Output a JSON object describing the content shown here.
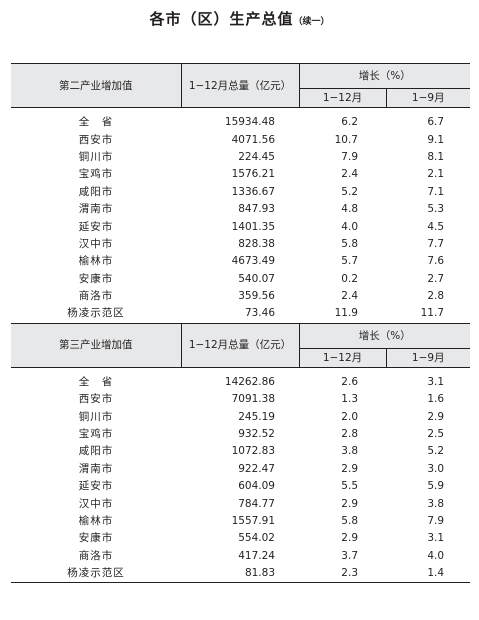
{
  "title": "各市（区）生产总值",
  "title_suffix": "（续一）",
  "columns": {
    "total": "1−12月总量（亿元）",
    "growth": "增长（%）",
    "growth_1_12": "1−12月",
    "growth_1_9": "1−9月"
  },
  "sections": [
    {
      "label": "第二产业增加值",
      "rows": [
        {
          "name": "全　省",
          "total": "15934.48",
          "g12": "6.2",
          "g9": "6.7"
        },
        {
          "name": "西安市",
          "total": "4071.56",
          "g12": "10.7",
          "g9": "9.1"
        },
        {
          "name": "铜川市",
          "total": "224.45",
          "g12": "7.9",
          "g9": "8.1"
        },
        {
          "name": "宝鸡市",
          "total": "1576.21",
          "g12": "2.4",
          "g9": "2.1"
        },
        {
          "name": "咸阳市",
          "total": "1336.67",
          "g12": "5.2",
          "g9": "7.1"
        },
        {
          "name": "渭南市",
          "total": "847.93",
          "g12": "4.8",
          "g9": "5.3"
        },
        {
          "name": "延安市",
          "total": "1401.35",
          "g12": "4.0",
          "g9": "4.5"
        },
        {
          "name": "汉中市",
          "total": "828.38",
          "g12": "5.8",
          "g9": "7.7"
        },
        {
          "name": "榆林市",
          "total": "4673.49",
          "g12": "5.7",
          "g9": "7.6"
        },
        {
          "name": "安康市",
          "total": "540.07",
          "g12": "0.2",
          "g9": "2.7"
        },
        {
          "name": "商洛市",
          "total": "359.56",
          "g12": "2.4",
          "g9": "2.8"
        },
        {
          "name": "杨凌示范区",
          "total": "73.46",
          "g12": "11.9",
          "g9": "11.7"
        }
      ]
    },
    {
      "label": "第三产业增加值",
      "rows": [
        {
          "name": "全　省",
          "total": "14262.86",
          "g12": "2.6",
          "g9": "3.1"
        },
        {
          "name": "西安市",
          "total": "7091.38",
          "g12": "1.3",
          "g9": "1.6"
        },
        {
          "name": "铜川市",
          "total": "245.19",
          "g12": "2.0",
          "g9": "2.9"
        },
        {
          "name": "宝鸡市",
          "total": "932.52",
          "g12": "2.8",
          "g9": "2.5"
        },
        {
          "name": "咸阳市",
          "total": "1072.83",
          "g12": "3.8",
          "g9": "5.2"
        },
        {
          "name": "渭南市",
          "total": "922.47",
          "g12": "2.9",
          "g9": "3.0"
        },
        {
          "name": "延安市",
          "total": "604.09",
          "g12": "5.5",
          "g9": "5.9"
        },
        {
          "name": "汉中市",
          "total": "784.77",
          "g12": "2.9",
          "g9": "3.8"
        },
        {
          "name": "榆林市",
          "total": "1557.91",
          "g12": "5.8",
          "g9": "7.9"
        },
        {
          "name": "安康市",
          "total": "554.02",
          "g12": "2.9",
          "g9": "3.1"
        },
        {
          "name": "商洛市",
          "total": "417.24",
          "g12": "3.7",
          "g9": "4.0"
        },
        {
          "name": "杨凌示范区",
          "total": "81.83",
          "g12": "2.3",
          "g9": "1.4"
        }
      ]
    }
  ]
}
